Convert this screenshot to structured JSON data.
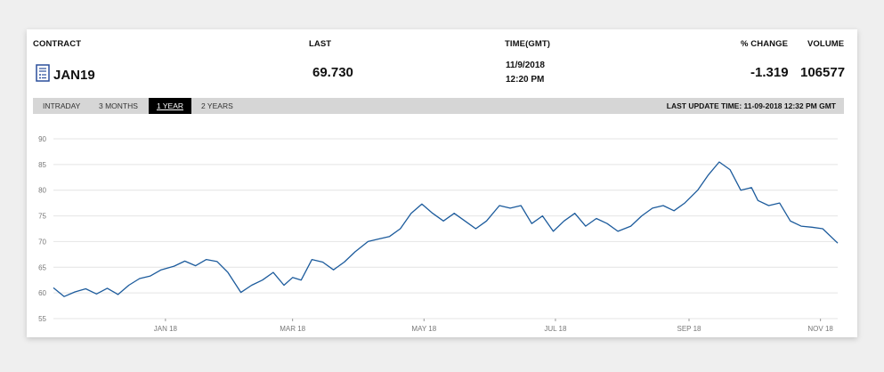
{
  "header": {
    "contract_label": "CONTRACT",
    "last_label": "LAST",
    "time_label": "TIME(GMT)",
    "change_label": "% CHANGE",
    "volume_label": "VOLUME"
  },
  "quote": {
    "contract": "JAN19",
    "contract_icon": "document-icon",
    "last": "69.730",
    "date": "11/9/2018",
    "time": "12:20 PM",
    "change": "-1.319",
    "volume": "106577"
  },
  "tabs": [
    {
      "label": "INTRADAY",
      "active": false
    },
    {
      "label": "3 MONTHS",
      "active": false
    },
    {
      "label": "1 YEAR",
      "active": true
    },
    {
      "label": "2 YEARS",
      "active": false
    }
  ],
  "last_update": "LAST UPDATE TIME: 11-09-2018 12:32 PM GMT",
  "colors": {
    "line": "#1c5b9c",
    "grid": "#e4e4e4",
    "active_tab": "#000000",
    "tabbar": "#d6d6d6"
  },
  "chart_data": {
    "type": "line",
    "ylim": [
      55,
      90
    ],
    "yticks": [
      "90",
      "85",
      "80",
      "75",
      "70",
      "65",
      "60",
      "55"
    ],
    "xticks": [
      "JAN 18",
      "MAR 18",
      "MAY 18",
      "JUL 18",
      "SEP 18",
      "NOV 18"
    ],
    "xtick_dates": [
      "2018-01-01",
      "2018-03-01",
      "2018-05-01",
      "2018-07-01",
      "2018-09-01",
      "2018-11-01"
    ],
    "xlim": [
      "2017-11-10",
      "2018-11-09"
    ],
    "grid": true,
    "series": [
      {
        "x": [
          "2017-11-10",
          "2017-11-15",
          "2017-11-20",
          "2017-11-25",
          "2017-11-30",
          "2017-12-05",
          "2017-12-10",
          "2017-12-15",
          "2017-12-20",
          "2017-12-25",
          "2017-12-30",
          "2018-01-05",
          "2018-01-10",
          "2018-01-15",
          "2018-01-20",
          "2018-01-25",
          "2018-01-30",
          "2018-02-05",
          "2018-02-10",
          "2018-02-15",
          "2018-02-20",
          "2018-02-25",
          "2018-03-01",
          "2018-03-05",
          "2018-03-10",
          "2018-03-15",
          "2018-03-20",
          "2018-03-25",
          "2018-03-30",
          "2018-04-05",
          "2018-04-10",
          "2018-04-15",
          "2018-04-20",
          "2018-04-25",
          "2018-04-30",
          "2018-05-05",
          "2018-05-10",
          "2018-05-15",
          "2018-05-20",
          "2018-05-25",
          "2018-05-30",
          "2018-06-05",
          "2018-06-10",
          "2018-06-15",
          "2018-06-20",
          "2018-06-25",
          "2018-06-30",
          "2018-07-05",
          "2018-07-10",
          "2018-07-15",
          "2018-07-20",
          "2018-07-25",
          "2018-07-30",
          "2018-08-05",
          "2018-08-10",
          "2018-08-15",
          "2018-08-20",
          "2018-08-25",
          "2018-08-30",
          "2018-09-05",
          "2018-09-10",
          "2018-09-15",
          "2018-09-20",
          "2018-09-25",
          "2018-09-30",
          "2018-10-03",
          "2018-10-08",
          "2018-10-13",
          "2018-10-18",
          "2018-10-23",
          "2018-10-28",
          "2018-11-02",
          "2018-11-09"
        ],
        "y": [
          61.0,
          59.3,
          60.2,
          60.8,
          59.8,
          60.9,
          59.7,
          61.5,
          62.8,
          63.3,
          64.5,
          65.2,
          66.2,
          65.3,
          66.5,
          66.1,
          64.0,
          60.1,
          61.5,
          62.5,
          64.0,
          61.5,
          63.0,
          62.5,
          66.5,
          66.0,
          64.5,
          66.0,
          68.0,
          70.0,
          70.5,
          71.0,
          72.5,
          75.5,
          77.3,
          75.5,
          74.0,
          75.5,
          74.0,
          72.5,
          74.0,
          77.0,
          76.5,
          77.0,
          73.5,
          75.0,
          72.0,
          74.0,
          75.5,
          73.0,
          74.5,
          73.5,
          72.0,
          73.0,
          75.0,
          76.5,
          77.0,
          76.0,
          77.5,
          80.0,
          83.0,
          85.5,
          84.0,
          80.0,
          80.5,
          78.0,
          77.0,
          77.5,
          74.0,
          73.0,
          72.8,
          72.5,
          69.7
        ]
      }
    ]
  }
}
